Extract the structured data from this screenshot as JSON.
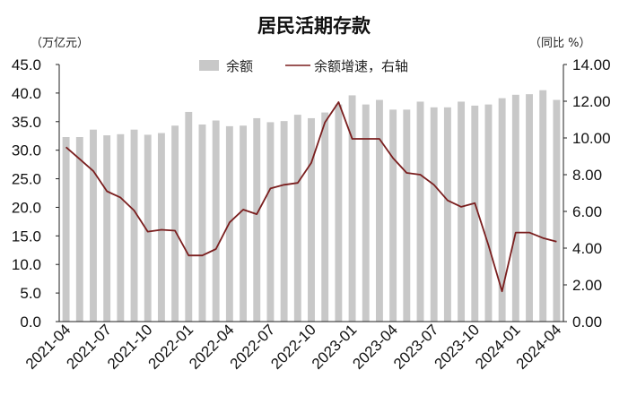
{
  "chart_data": {
    "type": "bar",
    "title": "居民活期存款",
    "left_unit": "（万亿元）",
    "right_unit": "（同比 %）",
    "legend_bar": "余额",
    "legend_line": "余额增速，右轴",
    "ylim_left": [
      0,
      45
    ],
    "ylim_right": [
      0,
      14
    ],
    "left_ticks": [
      "45.0",
      "40.0",
      "35.0",
      "30.0",
      "25.0",
      "20.0",
      "15.0",
      "10.0",
      "5.0",
      "0.0"
    ],
    "right_ticks": [
      "14.00",
      "12.00",
      "10.00",
      "8.00",
      "6.00",
      "4.00",
      "2.00",
      "0.00"
    ],
    "x_tick_labels": [
      "2021-04",
      "2021-07",
      "2021-10",
      "2022-01",
      "2022-04",
      "2022-07",
      "2022-10",
      "2023-01",
      "2023-04",
      "2023-07",
      "2023-10",
      "2024-01",
      "2024-04"
    ],
    "categories": [
      "2021-04",
      "2021-05",
      "2021-06",
      "2021-07",
      "2021-08",
      "2021-09",
      "2021-10",
      "2021-11",
      "2021-12",
      "2022-01",
      "2022-02",
      "2022-03",
      "2022-04",
      "2022-05",
      "2022-06",
      "2022-07",
      "2022-08",
      "2022-09",
      "2022-10",
      "2022-11",
      "2022-12",
      "2023-01",
      "2023-02",
      "2023-03",
      "2023-04",
      "2023-05",
      "2023-06",
      "2023-07",
      "2023-08",
      "2023-09",
      "2023-10",
      "2023-11",
      "2023-12",
      "2024-01",
      "2024-02",
      "2024-03",
      "2024-04"
    ],
    "bar_values": [
      32.3,
      32.3,
      33.6,
      32.6,
      32.8,
      33.6,
      32.7,
      33.0,
      34.3,
      36.7,
      34.5,
      35.2,
      34.2,
      34.3,
      35.6,
      34.9,
      35.1,
      36.2,
      35.6,
      36.6,
      38.0,
      39.6,
      38.0,
      38.8,
      37.1,
      37.1,
      38.5,
      37.5,
      37.5,
      38.5,
      37.8,
      38.0,
      39.1,
      39.7,
      39.8,
      40.5,
      38.8
    ],
    "line_values": [
      9.5,
      8.85,
      8.2,
      7.1,
      6.75,
      6.05,
      4.9,
      5.0,
      4.95,
      3.6,
      3.6,
      3.95,
      5.4,
      6.1,
      5.85,
      7.25,
      7.45,
      7.55,
      8.65,
      10.85,
      11.95,
      9.95,
      9.95,
      9.95,
      8.9,
      8.1,
      8.0,
      7.45,
      6.6,
      6.25,
      6.45,
      4.15,
      1.65,
      4.85,
      4.85,
      4.55,
      4.35
    ],
    "bar_color": "#c8c8c8",
    "line_color": "#7a1e1e"
  }
}
